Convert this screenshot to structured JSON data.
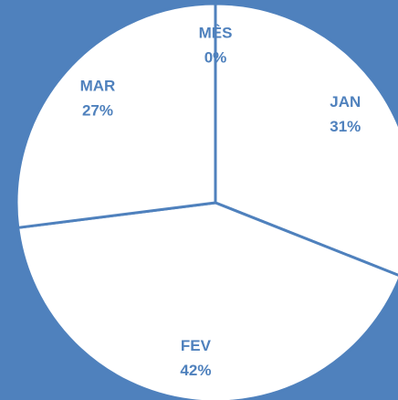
{
  "chart_data": {
    "type": "pie",
    "categories": [
      "MÊS",
      "JAN",
      "FEV",
      "MAR"
    ],
    "values": [
      0,
      31,
      42,
      27
    ],
    "value_labels": [
      "0%",
      "31%",
      "42%",
      "27%"
    ],
    "color": "#ffffff",
    "edge_color": "#4f81bd",
    "label_color": "#4f81bd",
    "background": "#4f81bd"
  }
}
